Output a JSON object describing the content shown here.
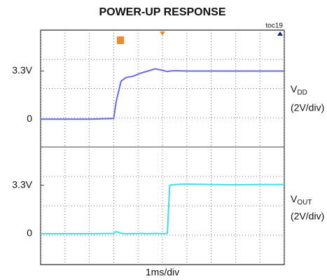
{
  "title": "POWER-UP RESPONSE",
  "note": "toc19",
  "x_label": "1ms/div",
  "chart_data": [
    {
      "type": "line",
      "x": [
        0,
        1,
        2,
        3,
        3.1,
        3.3,
        3.5,
        3.8,
        4.1,
        4.4,
        4.7,
        5.0,
        5.2,
        5.3,
        5.5,
        6,
        7,
        8,
        9,
        10
      ],
      "xlim": [
        0,
        10
      ],
      "xticks": [
        0,
        1,
        2,
        3,
        4,
        5,
        6,
        7,
        8,
        9,
        10
      ],
      "ylim": [
        -1.9,
        6.1
      ],
      "yticks": [
        0,
        {
          "value": 3.3,
          "label": "3.3V"
        }
      ],
      "grid": true,
      "series": [
        {
          "label": "V",
          "label_sub": "DD",
          "scale": "(2V/div)",
          "color": "#6a6ae8",
          "values": [
            0,
            0,
            0,
            0.05,
            1.2,
            2.6,
            2.85,
            2.95,
            3.15,
            3.3,
            3.45,
            3.35,
            3.26,
            3.3,
            3.32,
            3.3,
            3.3,
            3.3,
            3.3,
            3.3
          ]
        }
      ]
    },
    {
      "type": "line",
      "x": [
        0,
        1,
        2,
        3,
        3.1,
        3.3,
        3.5,
        3.8,
        4.1,
        4.4,
        4.7,
        5.0,
        5.2,
        5.3,
        5.5,
        6,
        7,
        8,
        9,
        10
      ],
      "xlim": [
        0,
        10
      ],
      "xticks": [
        0,
        1,
        2,
        3,
        4,
        5,
        6,
        7,
        8,
        9,
        10
      ],
      "ylim": [
        -2.1,
        5.9
      ],
      "yticks": [
        0,
        {
          "value": 3.3,
          "label": "3.3V"
        }
      ],
      "grid": true,
      "series": [
        {
          "label": "V",
          "label_sub": "OUT",
          "scale": "(2V/div)",
          "color": "#40dde6",
          "values": [
            0,
            0,
            0,
            0.02,
            0.15,
            0.03,
            0,
            0,
            0.02,
            0,
            0.02,
            0,
            0.02,
            3.3,
            3.35,
            3.38,
            3.35,
            3.33,
            3.35,
            3.35
          ]
        }
      ]
    }
  ]
}
